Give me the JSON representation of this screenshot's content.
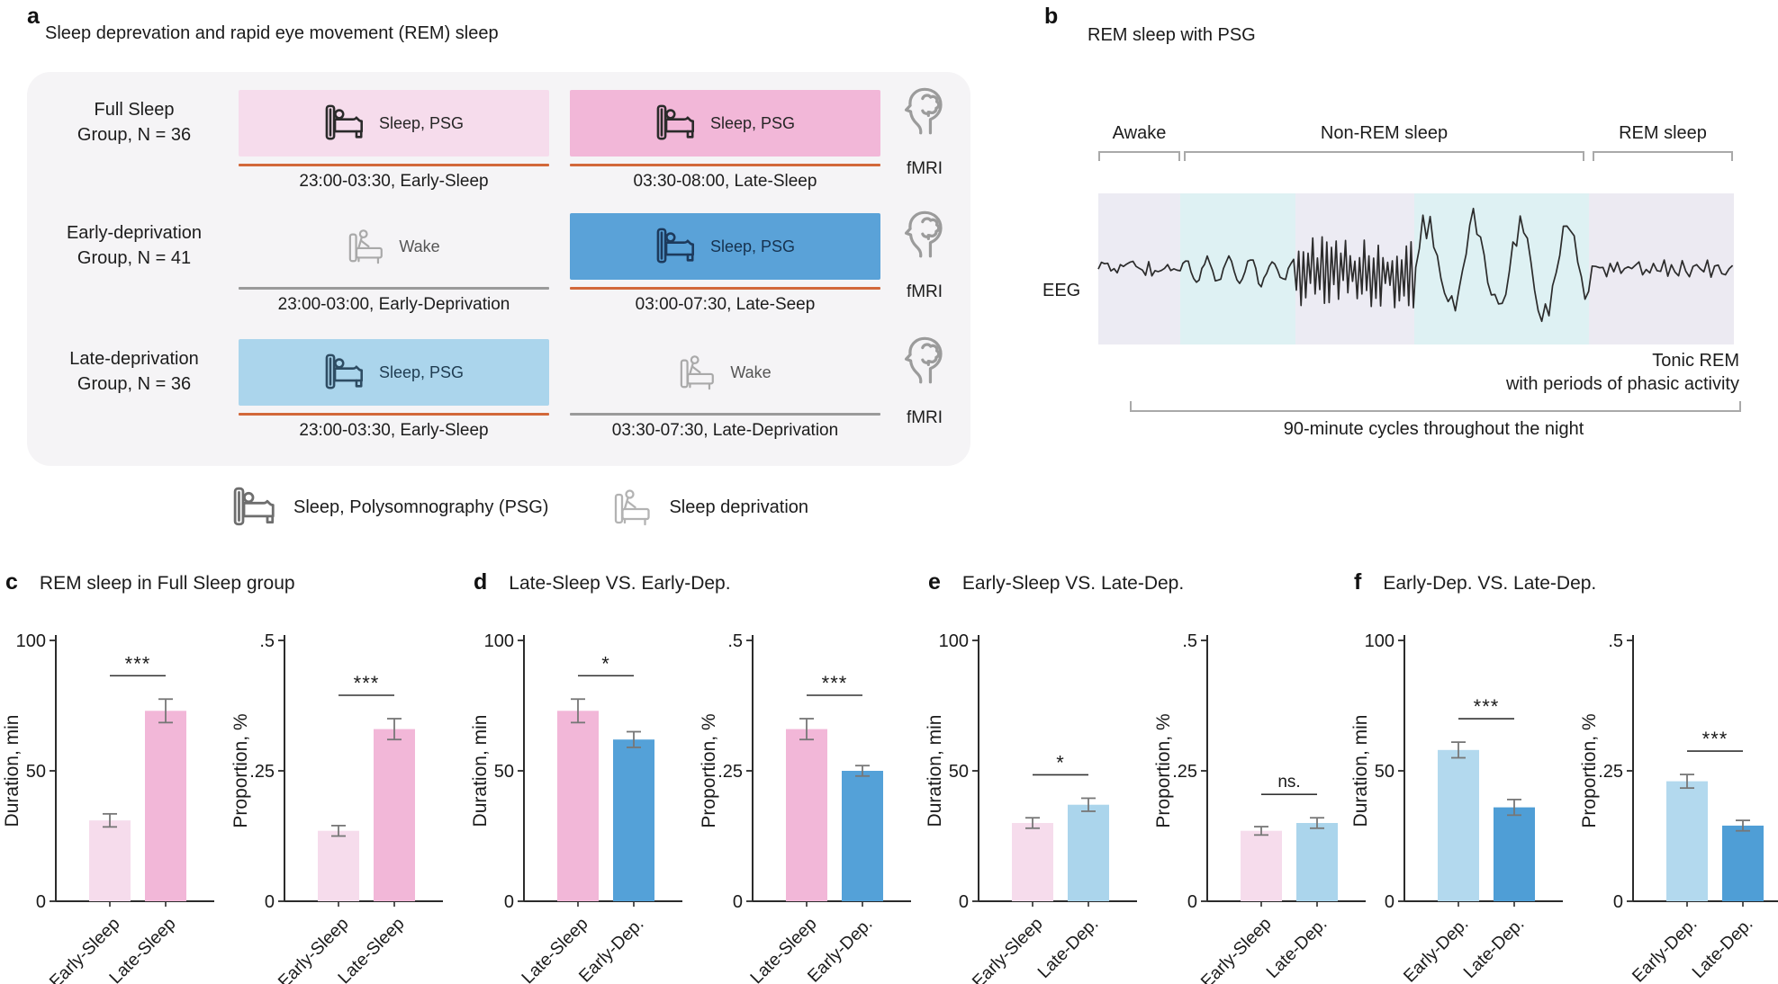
{
  "figure": {
    "panels": {
      "a": {
        "letter": "a",
        "title": "Sleep deprevation and rapid eye movement (REM) sleep",
        "groups": [
          {
            "label_line1": "Full Sleep",
            "label_line2": "Group, N = 36",
            "periods": [
              {
                "label": "Sleep, PSG",
                "caption": "23:00-03:30, Early-Sleep",
                "box_color": "#f6dcec",
                "underline_color": "#d2683a",
                "icon": "bed-sleep-icon"
              },
              {
                "label": "Sleep, PSG",
                "caption": "03:30-08:00, Late-Sleep",
                "box_color": "#f2b7d8",
                "underline_color": "#d2683a",
                "icon": "bed-sleep-icon"
              }
            ],
            "outcome": "fMRI"
          },
          {
            "label_line1": "Early-deprivation",
            "label_line2": "Group, N = 41",
            "periods": [
              {
                "label": "Wake",
                "caption": "23:00-03:00, Early-Deprivation",
                "box_color": null,
                "underline_color": "#9a9a9a",
                "icon": "bed-wake-icon"
              },
              {
                "label": "Sleep, PSG",
                "caption": "03:00-07:30, Late-Seep",
                "box_color": "#5aa2d8",
                "underline_color": "#d2683a",
                "icon": "bed-sleep-icon"
              }
            ],
            "outcome": "fMRI"
          },
          {
            "label_line1": "Late-deprivation",
            "label_line2": "Group, N = 36",
            "periods": [
              {
                "label": "Sleep, PSG",
                "caption": "23:00-03:30, Early-Sleep",
                "box_color": "#abd5ec",
                "underline_color": "#d2683a",
                "icon": "bed-sleep-icon"
              },
              {
                "label": "Wake",
                "caption": "03:30-07:30, Late-Deprivation",
                "box_color": null,
                "underline_color": "#9a9a9a",
                "icon": "bed-wake-icon"
              }
            ],
            "outcome": "fMRI"
          }
        ],
        "legend": [
          {
            "icon": "bed-sleep-icon",
            "label": "Sleep, Polysomnography (PSG)"
          },
          {
            "icon": "bed-wake-icon",
            "label": "Sleep deprivation"
          }
        ]
      },
      "b": {
        "letter": "b",
        "title": "REM sleep with PSG",
        "stage_labels": [
          "Awake",
          "Non-REM sleep",
          "REM sleep"
        ],
        "eeg_label": "EEG",
        "annotation_line1": "Tonic REM",
        "annotation_line2": "with periods of phasic activity",
        "cycle_caption": "90-minute cycles throughout the night",
        "segment_colors": [
          "#ecebf3",
          "#def1f3",
          "#ecebf3",
          "#def1f3",
          "#eceaf2"
        ],
        "trace_color": "#2b2b2b"
      }
    }
  },
  "chart_data": [
    {
      "panel": "c",
      "letter": "c",
      "title": "REM sleep in Full Sleep group",
      "subplots": [
        {
          "type": "bar",
          "ylabel": "Duration, min",
          "ylim": [
            0,
            100
          ],
          "ytick_values": [
            0,
            50,
            100
          ],
          "ytick_labels": [
            "0",
            "50",
            "100"
          ],
          "categories": [
            "Early-Sleep",
            "Late-Sleep"
          ],
          "values": [
            31,
            73
          ],
          "errors": [
            2.5,
            4.5
          ],
          "colors": [
            "#f6dcec",
            "#f2b7d8"
          ],
          "significance": "***"
        },
        {
          "type": "bar",
          "ylabel": "Proportion, %",
          "ylim": [
            0,
            0.5
          ],
          "ytick_values": [
            0,
            0.25,
            0.5
          ],
          "ytick_labels": [
            "0",
            ".25",
            ".5"
          ],
          "categories": [
            "Early-Sleep",
            "Late-Sleep"
          ],
          "values": [
            0.135,
            0.33
          ],
          "errors": [
            0.01,
            0.02
          ],
          "colors": [
            "#f6dcec",
            "#f2b7d8"
          ],
          "significance": "***"
        }
      ]
    },
    {
      "panel": "d",
      "letter": "d",
      "title": "Late-Sleep VS. Early-Dep.",
      "subplots": [
        {
          "type": "bar",
          "ylabel": "Duration, min",
          "ylim": [
            0,
            100
          ],
          "ytick_values": [
            0,
            50,
            100
          ],
          "ytick_labels": [
            "0",
            "50",
            "100"
          ],
          "categories": [
            "Late-Sleep",
            "Early-Dep."
          ],
          "values": [
            73,
            62
          ],
          "errors": [
            4.5,
            3
          ],
          "colors": [
            "#f2b7d8",
            "#54a1d8"
          ],
          "significance": "*"
        },
        {
          "type": "bar",
          "ylabel": "Proportion, %",
          "ylim": [
            0,
            0.5
          ],
          "ytick_values": [
            0,
            0.25,
            0.5
          ],
          "ytick_labels": [
            "0",
            ".25",
            ".5"
          ],
          "categories": [
            "Late-Sleep",
            "Early-Dep."
          ],
          "values": [
            0.33,
            0.25
          ],
          "errors": [
            0.02,
            0.01
          ],
          "colors": [
            "#f2b7d8",
            "#54a1d8"
          ],
          "significance": "***"
        }
      ]
    },
    {
      "panel": "e",
      "letter": "e",
      "title": "Early-Sleep VS. Late-Dep.",
      "subplots": [
        {
          "type": "bar",
          "ylabel": "Duration, min",
          "ylim": [
            0,
            100
          ],
          "ytick_values": [
            0,
            50,
            100
          ],
          "ytick_labels": [
            "0",
            "50",
            "100"
          ],
          "categories": [
            "Early-Sleep",
            "Late-Dep."
          ],
          "values": [
            30,
            37
          ],
          "errors": [
            2,
            2.5
          ],
          "colors": [
            "#f6dcec",
            "#abd5ec"
          ],
          "significance": "*"
        },
        {
          "type": "bar",
          "ylabel": "Proportion, %",
          "ylim": [
            0,
            0.5
          ],
          "ytick_values": [
            0,
            0.25,
            0.5
          ],
          "ytick_labels": [
            "0",
            ".25",
            ".5"
          ],
          "categories": [
            "Early-Sleep",
            "Late-Dep."
          ],
          "values": [
            0.135,
            0.15
          ],
          "errors": [
            0.008,
            0.01
          ],
          "colors": [
            "#f6dcec",
            "#abd5ec"
          ],
          "significance": "ns."
        }
      ]
    },
    {
      "panel": "f",
      "letter": "f",
      "title": "Early-Dep. VS. Late-Dep.",
      "subplots": [
        {
          "type": "bar",
          "ylabel": "Duration, min",
          "ylim": [
            0,
            100
          ],
          "ytick_values": [
            0,
            50,
            100
          ],
          "ytick_labels": [
            "0",
            "50",
            "100"
          ],
          "categories": [
            "Early-Dep.",
            "Late-Dep."
          ],
          "values": [
            58,
            36
          ],
          "errors": [
            3,
            3
          ],
          "colors": [
            "#b3d9ee",
            "#4f9ed6"
          ],
          "significance": "***"
        },
        {
          "type": "bar",
          "ylabel": "Proportion, %",
          "ylim": [
            0,
            0.5
          ],
          "ytick_values": [
            0,
            0.25,
            0.5
          ],
          "ytick_labels": [
            "0",
            ".25",
            ".5"
          ],
          "categories": [
            "Early-Dep.",
            "Late-Dep."
          ],
          "values": [
            0.23,
            0.145
          ],
          "errors": [
            0.013,
            0.01
          ],
          "colors": [
            "#b3d9ee",
            "#4f9ed6"
          ],
          "significance": "***"
        }
      ]
    }
  ]
}
